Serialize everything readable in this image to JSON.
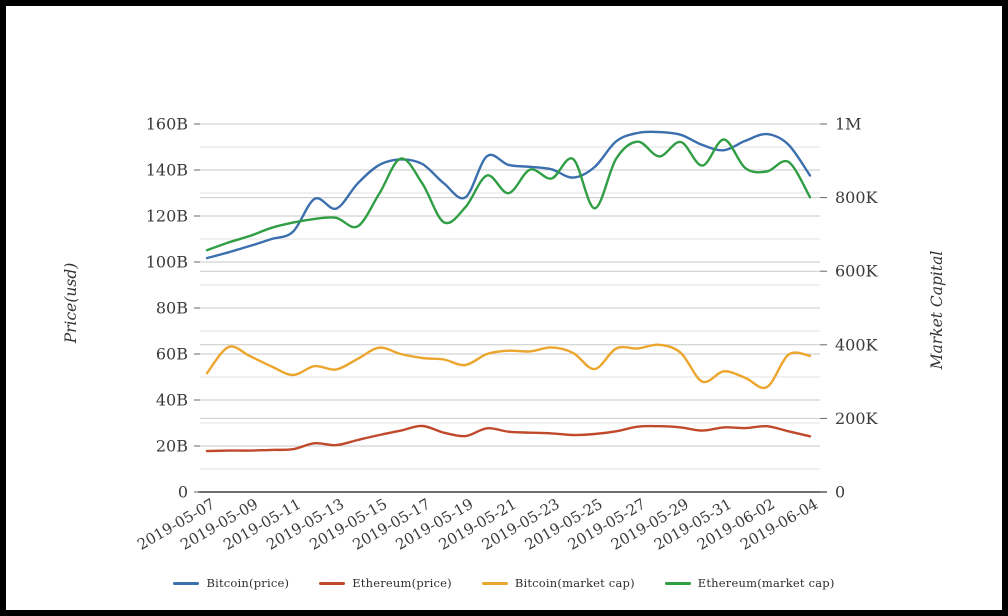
{
  "chart_data": {
    "type": "line",
    "x": [
      "2019-05-07",
      "2019-05-08",
      "2019-05-09",
      "2019-05-10",
      "2019-05-11",
      "2019-05-12",
      "2019-05-13",
      "2019-05-14",
      "2019-05-15",
      "2019-05-16",
      "2019-05-17",
      "2019-05-18",
      "2019-05-19",
      "2019-05-20",
      "2019-05-21",
      "2019-05-22",
      "2019-05-23",
      "2019-05-24",
      "2019-05-25",
      "2019-05-26",
      "2019-05-27",
      "2019-05-28",
      "2019-05-29",
      "2019-05-30",
      "2019-05-31",
      "2019-06-01",
      "2019-06-02",
      "2019-06-03",
      "2019-06-04"
    ],
    "x_tick_step": 2,
    "x_tick_labels": [
      "2019-05-07",
      "2019-05-09",
      "2019-05-11",
      "2019-05-13",
      "2019-05-15",
      "2019-05-17",
      "2019-05-19",
      "2019-05-21",
      "2019-05-23",
      "2019-05-25",
      "2019-05-27",
      "2019-05-29",
      "2019-05-31",
      "2019-06-02",
      "2019-06-04"
    ],
    "series": [
      {
        "name": "Bitcoin(price)",
        "axis": "left",
        "color": "#3b6fae",
        "values": [
          101.7,
          104.2,
          107.0,
          110.0,
          113.2,
          127.5,
          123.2,
          134.2,
          142.2,
          144.6,
          142.6,
          134.2,
          128.1,
          146.0,
          142.2,
          141.4,
          140.3,
          136.7,
          141.3,
          152.5,
          156.1,
          156.5,
          155.3,
          150.9,
          148.6,
          152.7,
          155.6,
          151.0,
          137.6
        ]
      },
      {
        "name": "Ethereum(price)",
        "axis": "left",
        "color": "#c0492b",
        "values": [
          17.8,
          18.0,
          18.0,
          18.3,
          18.6,
          21.2,
          20.4,
          22.6,
          24.8,
          26.7,
          28.7,
          25.8,
          24.3,
          27.7,
          26.2,
          25.8,
          25.5,
          24.8,
          25.2,
          26.4,
          28.4,
          28.6,
          28.1,
          26.7,
          28.1,
          27.8,
          28.6,
          26.4,
          24.2
        ]
      },
      {
        "name": "Bitcoin(market cap)",
        "axis": "right",
        "color": "#eca52d",
        "values": [
          323,
          394,
          369,
          341,
          318,
          342,
          333,
          362,
          392,
          375,
          364,
          360,
          345,
          375,
          384,
          382,
          393,
          378,
          334,
          390,
          390,
          400,
          378,
          300,
          328,
          310,
          285,
          373,
          370
        ]
      },
      {
        "name": "Ethereum(market cap)",
        "axis": "right",
        "color": "#2f9e44",
        "values": [
          657,
          678,
          696,
          718,
          732,
          742,
          745,
          722,
          811,
          906,
          838,
          733,
          774,
          860,
          812,
          876,
          852,
          905,
          771,
          906,
          952,
          912,
          951,
          887,
          958,
          880,
          871,
          897,
          801
        ]
      }
    ],
    "left_axis": {
      "label": "Price(usd)",
      "range": [
        0,
        160
      ],
      "tick_values": [
        0,
        20,
        40,
        60,
        80,
        100,
        120,
        140,
        160
      ],
      "tick_labels": [
        "0",
        "20B",
        "40B",
        "60B",
        "80B",
        "100B",
        "120B",
        "140B",
        "160B"
      ],
      "minor_step": 10
    },
    "right_axis": {
      "label": "Market Capital",
      "range": [
        0,
        1000
      ],
      "tick_values": [
        0,
        200,
        400,
        600,
        800,
        1000
      ],
      "tick_labels": [
        "0",
        "200K",
        "400K",
        "600K",
        "800K",
        "1M"
      ]
    },
    "grid": true,
    "legend_position": "bottom"
  },
  "colors": {
    "background": "#ffffff",
    "frame_border": "#000000",
    "grid_major": "#c9c9c9",
    "grid_minor": "#e2e2e2",
    "axis_line": "#3f3f3f",
    "tick_text": "#3a3a3a"
  }
}
